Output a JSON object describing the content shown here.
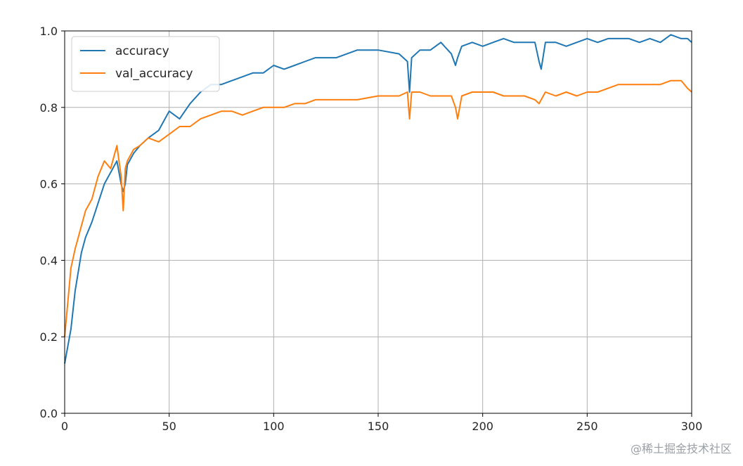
{
  "chart_data": {
    "type": "line",
    "title": "",
    "xlabel": "",
    "ylabel": "",
    "xlim": [
      0,
      300
    ],
    "ylim": [
      0.0,
      1.0
    ],
    "grid": true,
    "legend_position": "top-left",
    "x_ticks": [
      "0",
      "50",
      "100",
      "150",
      "200",
      "250",
      "300"
    ],
    "y_ticks": [
      "0.0",
      "0.2",
      "0.4",
      "0.6",
      "0.8",
      "1.0"
    ],
    "x": [
      0,
      3,
      5,
      8,
      10,
      13,
      16,
      19,
      22,
      25,
      27,
      28,
      29,
      30,
      33,
      36,
      40,
      45,
      50,
      55,
      60,
      65,
      70,
      75,
      80,
      85,
      90,
      95,
      100,
      105,
      110,
      115,
      120,
      130,
      140,
      150,
      160,
      164,
      165,
      166,
      170,
      175,
      180,
      185,
      187,
      188,
      190,
      195,
      200,
      205,
      210,
      215,
      220,
      225,
      227,
      228,
      230,
      235,
      240,
      245,
      250,
      255,
      260,
      265,
      270,
      275,
      280,
      285,
      290,
      295,
      298,
      300
    ],
    "series": [
      {
        "name": "accuracy",
        "color": "#1f77b4",
        "values": [
          0.13,
          0.22,
          0.32,
          0.42,
          0.46,
          0.5,
          0.55,
          0.6,
          0.63,
          0.66,
          0.6,
          0.58,
          0.6,
          0.65,
          0.68,
          0.7,
          0.72,
          0.74,
          0.79,
          0.77,
          0.81,
          0.84,
          0.86,
          0.86,
          0.87,
          0.88,
          0.89,
          0.89,
          0.91,
          0.9,
          0.91,
          0.92,
          0.93,
          0.93,
          0.95,
          0.95,
          0.94,
          0.92,
          0.84,
          0.93,
          0.95,
          0.95,
          0.97,
          0.94,
          0.91,
          0.93,
          0.96,
          0.97,
          0.96,
          0.97,
          0.98,
          0.97,
          0.97,
          0.97,
          0.92,
          0.9,
          0.97,
          0.97,
          0.96,
          0.97,
          0.98,
          0.97,
          0.98,
          0.98,
          0.98,
          0.97,
          0.98,
          0.97,
          0.99,
          0.98,
          0.98,
          0.97
        ]
      },
      {
        "name": "val_accuracy",
        "color": "#ff7f0e",
        "values": [
          0.2,
          0.38,
          0.43,
          0.49,
          0.53,
          0.56,
          0.62,
          0.66,
          0.64,
          0.7,
          0.62,
          0.53,
          0.64,
          0.66,
          0.69,
          0.7,
          0.72,
          0.71,
          0.73,
          0.75,
          0.75,
          0.77,
          0.78,
          0.79,
          0.79,
          0.78,
          0.79,
          0.8,
          0.8,
          0.8,
          0.81,
          0.81,
          0.82,
          0.82,
          0.82,
          0.83,
          0.83,
          0.84,
          0.77,
          0.84,
          0.84,
          0.83,
          0.83,
          0.83,
          0.8,
          0.77,
          0.83,
          0.84,
          0.84,
          0.84,
          0.83,
          0.83,
          0.83,
          0.82,
          0.81,
          0.82,
          0.84,
          0.83,
          0.84,
          0.83,
          0.84,
          0.84,
          0.85,
          0.86,
          0.86,
          0.86,
          0.86,
          0.86,
          0.87,
          0.87,
          0.85,
          0.84
        ]
      }
    ]
  },
  "watermark": "@稀土掘金技术社区"
}
